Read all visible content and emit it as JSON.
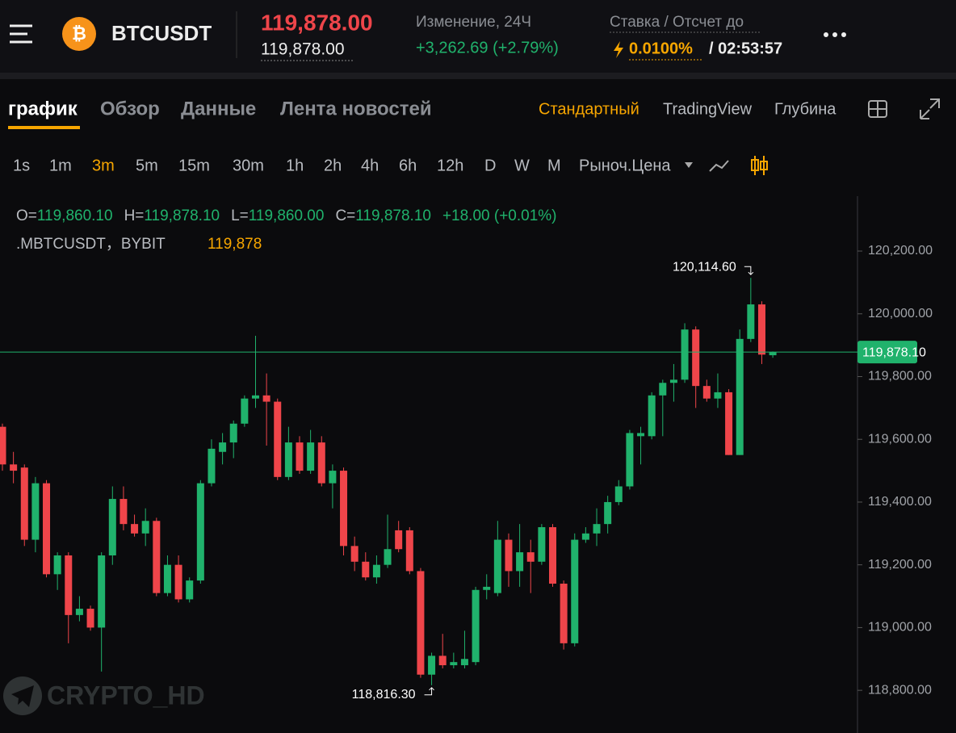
{
  "header": {
    "symbol": "BTCUSDT",
    "last_price": "119,878.00",
    "mark_price": "119,878.00",
    "change_label": "Изменение, 24Ч",
    "change": "+3,262.69 (+2.79%)",
    "funding_label": "Ставка / Отсчет до",
    "funding_rate": "0.0100%",
    "countdown": "/ 02:53:57"
  },
  "tabs": [
    "график",
    "Обзор",
    "Данные",
    "Лента новостей"
  ],
  "views": [
    "Стандартный",
    "TradingView",
    "Глубина"
  ],
  "intervals": [
    "1s",
    "1m",
    "3m",
    "5m",
    "15m",
    "30m",
    "1h",
    "2h",
    "4h",
    "6h",
    "12h",
    "D",
    "W",
    "M"
  ],
  "price_type": "Рыноч.Цена",
  "legend": {
    "ohlc": [
      {
        "label": "O=",
        "value": "119,860.10"
      },
      {
        "label": "H=",
        "value": "119,878.10"
      },
      {
        "label": "L=",
        "value": "119,860.00"
      },
      {
        "label": "C=",
        "value": "119,878.10"
      }
    ],
    "change": "+18.00 (+0.01%)",
    "source": ".MBTCUSDT，BYBIT",
    "index_price": "119,878"
  },
  "watermark": "CRYPTO_HD",
  "chart_data": {
    "type": "candlestick",
    "candles": {
      "open": [
        119640,
        119520,
        119510,
        119280,
        119460,
        119170,
        119230,
        119040,
        119060,
        119000,
        119230,
        119410,
        119330,
        119300,
        119340,
        119110,
        119200,
        119090,
        119150,
        119460,
        119560,
        119590,
        119650,
        119730,
        119740,
        119720,
        119480,
        119590,
        119500,
        119590,
        119460,
        119500,
        119260,
        119210,
        119160,
        119200,
        119310,
        119310,
        119180,
        118850,
        118910,
        118880,
        118880,
        118890,
        119120,
        119110,
        119280,
        119180,
        119240,
        119210,
        119320,
        119140,
        118950,
        119280,
        119300,
        119330,
        119400,
        119450,
        119610,
        119610,
        119740,
        119780,
        119790,
        119950,
        119770,
        119730,
        119750,
        119550,
        119920,
        120030,
        119868
      ],
      "high": [
        119650,
        119560,
        119520,
        119480,
        119470,
        119240,
        119240,
        119100,
        119070,
        119240,
        119450,
        119450,
        119360,
        119380,
        119350,
        119230,
        119230,
        119160,
        119470,
        119600,
        119620,
        119660,
        119740,
        119930,
        119810,
        119730,
        119640,
        119610,
        119630,
        119610,
        119520,
        119510,
        119290,
        119240,
        119230,
        119360,
        119340,
        119320,
        119190,
        118920,
        118980,
        118920,
        118990,
        119130,
        119170,
        119340,
        119300,
        119330,
        119280,
        119330,
        119330,
        119150,
        119300,
        119320,
        119380,
        119420,
        119470,
        119630,
        119640,
        119750,
        119790,
        119840,
        119970,
        119960,
        119790,
        119810,
        119760,
        119950,
        120114.6,
        120040,
        119880
      ],
      "low": [
        119500,
        119460,
        119260,
        119240,
        119160,
        119120,
        118950,
        119020,
        118990,
        118860,
        119200,
        119310,
        119290,
        119260,
        119100,
        119100,
        119080,
        119080,
        119140,
        119450,
        119520,
        119540,
        119640,
        119700,
        119580,
        119470,
        119470,
        119490,
        119490,
        119450,
        119380,
        119230,
        119180,
        119150,
        119140,
        119190,
        119240,
        119170,
        118840,
        118816.3,
        118870,
        118870,
        118870,
        118880,
        119090,
        119100,
        119130,
        119130,
        119110,
        119200,
        119130,
        118930,
        118940,
        119270,
        119260,
        119300,
        119390,
        119440,
        119520,
        119600,
        119610,
        119720,
        119780,
        119700,
        119720,
        119700,
        119550,
        119550,
        119910,
        119840,
        119860
      ],
      "close": [
        119520,
        119500,
        119280,
        119460,
        119170,
        119230,
        119040,
        119060,
        119000,
        119230,
        119410,
        119330,
        119300,
        119340,
        119110,
        119200,
        119090,
        119150,
        119460,
        119570,
        119590,
        119650,
        119730,
        119740,
        119720,
        119480,
        119590,
        119500,
        119590,
        119460,
        119500,
        119260,
        119210,
        119160,
        119200,
        119250,
        119250,
        119180,
        118850,
        118910,
        118880,
        118890,
        118900,
        119120,
        119130,
        119280,
        119180,
        119240,
        119210,
        119320,
        119140,
        118950,
        119280,
        119300,
        119330,
        119400,
        119450,
        119620,
        119620,
        119740,
        119780,
        119790,
        119950,
        119770,
        119730,
        119750,
        119550,
        119920,
        120030,
        119870,
        119878.1
      ]
    },
    "up_color": "#20b26c",
    "down_color": "#ef454a",
    "ylim": [
      118664,
      120375
    ],
    "yticks": [
      {
        "value": 118800,
        "label": "118,800.00"
      },
      {
        "value": 119000,
        "label": "119,000.00"
      },
      {
        "value": 119200,
        "label": "119,200.00"
      },
      {
        "value": 119400,
        "label": "119,400.00"
      },
      {
        "value": 119600,
        "label": "119,600.00"
      },
      {
        "value": 119800,
        "label": "119,800.00"
      },
      {
        "value": 120000,
        "label": "120,000.00"
      },
      {
        "value": 120200,
        "label": "120,200.00"
      }
    ],
    "last_price": {
      "value": 119878.1,
      "label": "119,878.10"
    },
    "max_label": "120,114.60",
    "min_label": "118,816.30"
  }
}
